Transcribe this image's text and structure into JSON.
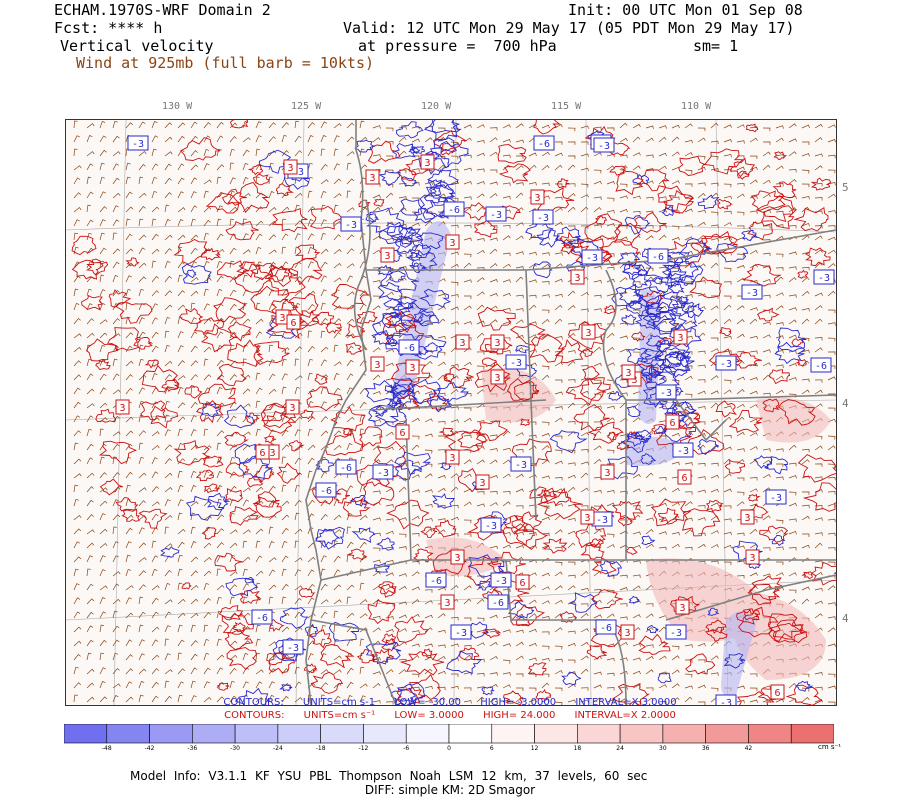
{
  "header": {
    "title": "ECHAM.1970S-WRF Domain 2",
    "init": "Init: 00 UTC Mon 01 Sep 08",
    "fcst": "Fcst: **** h",
    "valid": "Valid: 12 UTC Mon 29 May 17 (05 PDT Mon 29 May 17)",
    "field": "Vertical velocity",
    "pressure": "at pressure =  700 hPa",
    "smoothing": "sm= 1",
    "wind": "Wind at 925mb (full barb = 10kts)"
  },
  "longitude_labels": [
    "130 W",
    "125 W",
    "120 W",
    "115 W",
    "110 W"
  ],
  "latitude_labels": [
    "5",
    "4",
    "4"
  ],
  "contour_labels": {
    "negative": [
      "-3",
      "-3",
      "-3",
      "-6",
      "-3",
      "-3",
      "-6",
      "-3",
      "-3",
      "-6",
      "-3",
      "-3",
      "-6",
      "-3",
      "-3",
      "-6",
      "-3",
      "-6",
      "-3",
      "-6",
      "-3",
      "-3",
      "-3",
      "-3",
      "-6",
      "-3",
      "-3",
      "-3",
      "-6",
      "-3",
      "-6",
      "-3",
      "-3",
      "-3",
      "-6",
      "-3",
      "-6"
    ],
    "positive": [
      "3",
      "3",
      "3",
      "3",
      "3",
      "3",
      "3",
      "6",
      "3",
      "3",
      "3",
      "3",
      "3",
      "6",
      "3",
      "3",
      "3",
      "6",
      "3",
      "3",
      "3",
      "3",
      "3",
      "6",
      "3",
      "3",
      "3",
      "3",
      "6",
      "3",
      "3",
      "3",
      "3",
      "6",
      "3",
      "3",
      "6"
    ]
  },
  "contours_blue": {
    "prefix": "CONTOURS:",
    "units": "UNITS=cm s-1",
    "low": "LOW=  -30.00",
    "high": "HIGH=  -3.0000",
    "interval": "INTERVAL=X  3.0000"
  },
  "contours_red": {
    "prefix": "CONTOURS:",
    "units": "UNITS=cm s⁻¹",
    "low": "LOW=   3.0000",
    "high": "HIGH=  24.000",
    "interval": "INTERVAL=X  2.0000"
  },
  "colorbar": {
    "labels": [
      "-48",
      "-42",
      "-36",
      "-30",
      "-24",
      "-18",
      "-12",
      "-6",
      "0",
      "6",
      "12",
      "18",
      "24",
      "30",
      "36",
      "42"
    ],
    "unit": "cm s⁻¹",
    "colors": [
      "#6f6ff0",
      "#8585f2",
      "#9a9af4",
      "#adadf6",
      "#bebef8",
      "#cdcdf9",
      "#dadafb",
      "#e8e8fc",
      "#f6f6fe",
      "#ffffff",
      "#fff4f4",
      "#fde6e6",
      "#fbd6d6",
      "#f8c4c4",
      "#f5b0b0",
      "#f29a9a",
      "#ef8585",
      "#ec7070"
    ]
  },
  "footer": {
    "model_info": "Model Info: V3.1.1   KF     YSU PBL  Thompson    Noah LSM  12 km,   37 levels,   60 sec",
    "diff": "DIFF: simple KM: 2D Smagor"
  },
  "colors": {
    "positive_contour": "#cc1111",
    "negative_contour": "#2a2acc",
    "wind_barb": "#8b4513",
    "border": "#808080"
  }
}
